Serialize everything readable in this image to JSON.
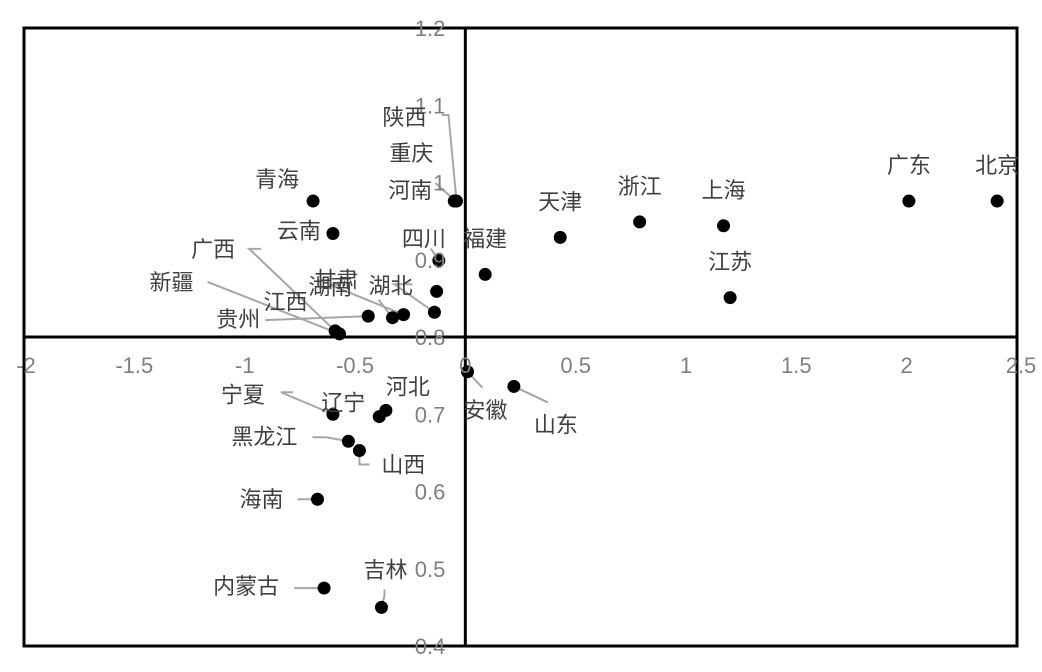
{
  "chart_data": {
    "type": "scatter",
    "title": "",
    "xlabel": "",
    "ylabel": "",
    "xlim": [
      -2,
      2.5
    ],
    "ylim": [
      0.4,
      1.2
    ],
    "crossing": [
      0,
      0.8
    ],
    "grid": false,
    "legend": "none",
    "x_ticks": [
      -2,
      -1.5,
      -1,
      -0.5,
      0,
      0.5,
      1,
      1.5,
      2,
      2.5
    ],
    "x_tick_labels": [
      "-2",
      "-1.5",
      "-1",
      "-0.5",
      "0",
      "0.5",
      "1",
      "1.5",
      "2",
      "2.5"
    ],
    "y_ticks": [
      0.4,
      0.5,
      0.6,
      0.7,
      0.8,
      0.9,
      1,
      1.1,
      1.2
    ],
    "y_tick_labels": [
      "0.4",
      "0.5",
      "0.6",
      "0.7",
      "0.8",
      "0.9",
      "1",
      "1.1",
      "1.2"
    ],
    "point_color": "#000000",
    "leader_color": "#a6a6a6",
    "points": [
      {
        "name": "北京",
        "x": 2.41,
        "y": 0.976
      },
      {
        "name": "广东",
        "x": 2.01,
        "y": 0.976
      },
      {
        "name": "上海",
        "x": 1.17,
        "y": 0.944
      },
      {
        "name": "浙江",
        "x": 0.79,
        "y": 0.949
      },
      {
        "name": "天津",
        "x": 0.43,
        "y": 0.929
      },
      {
        "name": "江苏",
        "x": 1.2,
        "y": 0.851
      },
      {
        "name": "福建",
        "x": 0.09,
        "y": 0.881
      },
      {
        "name": "陕西",
        "x": -0.04,
        "y": 0.976
      },
      {
        "name": "重庆",
        "x": -0.045,
        "y": 0.976
      },
      {
        "name": "河南",
        "x": -0.05,
        "y": 0.976
      },
      {
        "name": "青海",
        "x": -0.69,
        "y": 0.976
      },
      {
        "name": "云南",
        "x": -0.6,
        "y": 0.934
      },
      {
        "name": "四川",
        "x": -0.12,
        "y": 0.899
      },
      {
        "name": "江西",
        "x": -0.28,
        "y": 0.829
      },
      {
        "name": "湖北",
        "x": -0.13,
        "y": 0.859
      },
      {
        "name": "甘肃",
        "x": -0.33,
        "y": 0.825
      },
      {
        "name": "湖南",
        "x": -0.14,
        "y": 0.832
      },
      {
        "name": "贵州",
        "x": -0.44,
        "y": 0.827
      },
      {
        "name": "广西",
        "x": -0.59,
        "y": 0.808
      },
      {
        "name": "新疆",
        "x": -0.57,
        "y": 0.804
      },
      {
        "name": "安徽",
        "x": 0.01,
        "y": 0.755
      },
      {
        "name": "山东",
        "x": 0.22,
        "y": 0.736
      },
      {
        "name": "河北",
        "x": -0.36,
        "y": 0.705
      },
      {
        "name": "辽宁",
        "x": -0.39,
        "y": 0.697
      },
      {
        "name": "宁夏",
        "x": -0.6,
        "y": 0.7
      },
      {
        "name": "黑龙江",
        "x": -0.53,
        "y": 0.665
      },
      {
        "name": "山西",
        "x": -0.48,
        "y": 0.653
      },
      {
        "name": "海南",
        "x": -0.67,
        "y": 0.59
      },
      {
        "name": "内蒙古",
        "x": -0.64,
        "y": 0.475
      },
      {
        "name": "吉林",
        "x": -0.38,
        "y": 0.45
      }
    ]
  }
}
